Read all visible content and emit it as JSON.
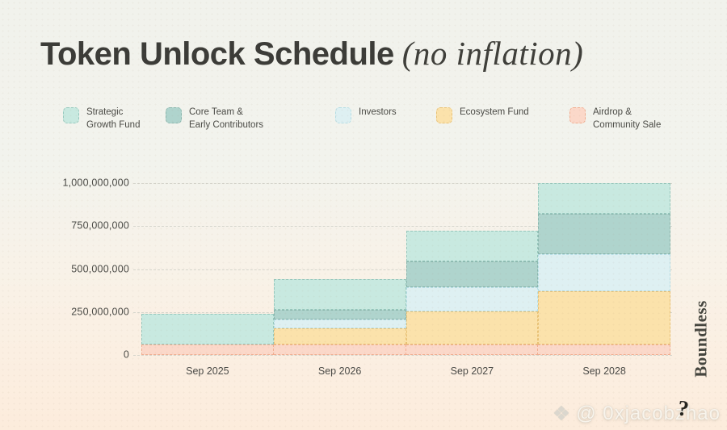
{
  "title": {
    "main": "Token Unlock Schedule",
    "suffix": "(no inflation)"
  },
  "branding": {
    "vertical_label": "Boundless",
    "watermark_handle": "@ 0xjacobzhao",
    "watermark_icon": "diamond-icon"
  },
  "colors": {
    "background_top": "#f1f2ec",
    "background_bottom": "#fcecdc",
    "title_text": "#3c3c38",
    "axis_text": "#4b4b47",
    "gridline": "#d5d5cc"
  },
  "chart_data": {
    "type": "area",
    "subtype": "stacked-step",
    "grid": "dashed-horizontal",
    "x": [
      "Sep 2025",
      "Sep 2026",
      "Sep 2027",
      "Sep 2028"
    ],
    "ylim": [
      0,
      1000000000
    ],
    "ytick_values": [
      0,
      250000000,
      500000000,
      750000000,
      1000000000
    ],
    "ytick_labels": [
      "0",
      "250,000,000",
      "500,000,000",
      "750,000,000",
      "1,000,000,000"
    ],
    "total_supply": 1000000000,
    "series_bottom_to_top": [
      {
        "name": "Airdrop & Community Sale",
        "fill": "#fbd8c9",
        "border": "#f0ad90",
        "values": [
          60000000,
          60000000,
          60000000,
          60000000
        ]
      },
      {
        "name": "Ecosystem Fund",
        "fill": "#fbe2ab",
        "border": "#e8c176",
        "values": [
          0,
          95000000,
          195000000,
          310000000
        ]
      },
      {
        "name": "Investors",
        "fill": "#def0f2",
        "border": "#b5dde4",
        "values": [
          0,
          52000000,
          140000000,
          215000000
        ]
      },
      {
        "name": "Core Team & Early Contributors",
        "fill": "#afd4cd",
        "border": "#8bb5ac",
        "values": [
          0,
          55000000,
          150000000,
          235000000
        ]
      },
      {
        "name": "Strategic Growth Fund",
        "fill": "#c8e9e0",
        "border": "#96c7bc",
        "values": [
          180000000,
          180000000,
          180000000,
          180000000
        ]
      }
    ],
    "legend": [
      {
        "series": "Strategic Growth Fund",
        "lines": [
          "Strategic",
          "Growth Fund"
        ]
      },
      {
        "series": "Core Team & Early Contributors",
        "lines": [
          "Core Team &",
          "Early Contributors"
        ]
      },
      {
        "series": "Investors",
        "lines": [
          "Investors"
        ]
      },
      {
        "series": "Ecosystem Fund",
        "lines": [
          "Ecosystem Fund"
        ]
      },
      {
        "series": "Airdrop & Community Sale",
        "lines": [
          "Airdrop &",
          "Community Sale"
        ]
      }
    ],
    "legend_position": "top"
  }
}
